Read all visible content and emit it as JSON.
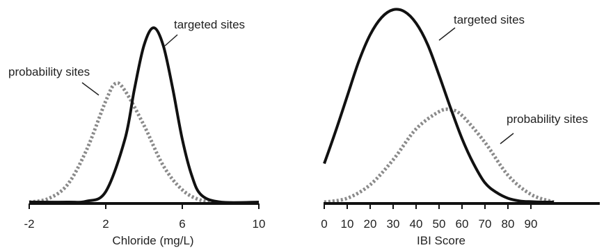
{
  "chart_data": [
    {
      "type": "line",
      "xlabel": "Chloride (mg/L)",
      "ylabel": "",
      "xlim": [
        -2,
        10
      ],
      "x_ticks": [
        "-2",
        "2",
        "6",
        "10"
      ],
      "grid": false,
      "legend": "none",
      "colors": {
        "targeted": "#111111",
        "probability": "#8a8a8a",
        "axis": "#111111"
      },
      "series": [
        {
          "name": "targeted sites",
          "style": "solid",
          "x": [
            -2,
            0,
            1,
            2,
            3,
            3.5,
            4,
            4.5,
            5,
            5.5,
            6,
            6.5,
            7,
            8,
            10
          ],
          "y": [
            0,
            0,
            0.005,
            0.06,
            0.36,
            0.65,
            0.9,
            1.0,
            0.9,
            0.65,
            0.36,
            0.15,
            0.04,
            0,
            0
          ]
        },
        {
          "name": "probability sites",
          "style": "dotted",
          "x": [
            -2,
            -1,
            0,
            1,
            2,
            2.5,
            3,
            4,
            5,
            6,
            7,
            8
          ],
          "y": [
            0,
            0.02,
            0.1,
            0.3,
            0.58,
            0.68,
            0.64,
            0.44,
            0.21,
            0.07,
            0.01,
            0
          ]
        }
      ],
      "annotations": [
        {
          "text": "targeted sites",
          "target_series": "targeted sites"
        },
        {
          "text": "probability sites",
          "target_series": "probability sites"
        }
      ]
    },
    {
      "type": "line",
      "xlabel": "IBI Score",
      "ylabel": "",
      "xlim": [
        0,
        100
      ],
      "x_ticks": [
        "0",
        "10",
        "20",
        "30",
        "40",
        "50",
        "60",
        "70",
        "80",
        "90"
      ],
      "grid": false,
      "legend": "none",
      "colors": {
        "targeted": "#111111",
        "probability": "#8a8a8a",
        "axis": "#111111"
      },
      "series": [
        {
          "name": "targeted sites",
          "style": "solid",
          "x": [
            0,
            5,
            10,
            15,
            20,
            25,
            30,
            35,
            40,
            45,
            50,
            55,
            60,
            65,
            70,
            75,
            80,
            85,
            90,
            95,
            100
          ],
          "y": [
            0.2,
            0.37,
            0.55,
            0.73,
            0.87,
            0.96,
            1.0,
            0.99,
            0.93,
            0.82,
            0.66,
            0.49,
            0.33,
            0.2,
            0.1,
            0.05,
            0.02,
            0.006,
            0.002,
            0,
            0
          ]
        },
        {
          "name": "probability sites",
          "style": "dotted",
          "x": [
            0,
            10,
            20,
            30,
            40,
            50,
            55,
            60,
            70,
            80,
            90,
            100
          ],
          "y": [
            0,
            0.02,
            0.09,
            0.22,
            0.38,
            0.47,
            0.48,
            0.45,
            0.31,
            0.14,
            0.04,
            0
          ]
        }
      ],
      "annotations": [
        {
          "text": "targeted sites",
          "target_series": "targeted sites"
        },
        {
          "text": "probability sites",
          "target_series": "probability sites"
        }
      ]
    }
  ]
}
